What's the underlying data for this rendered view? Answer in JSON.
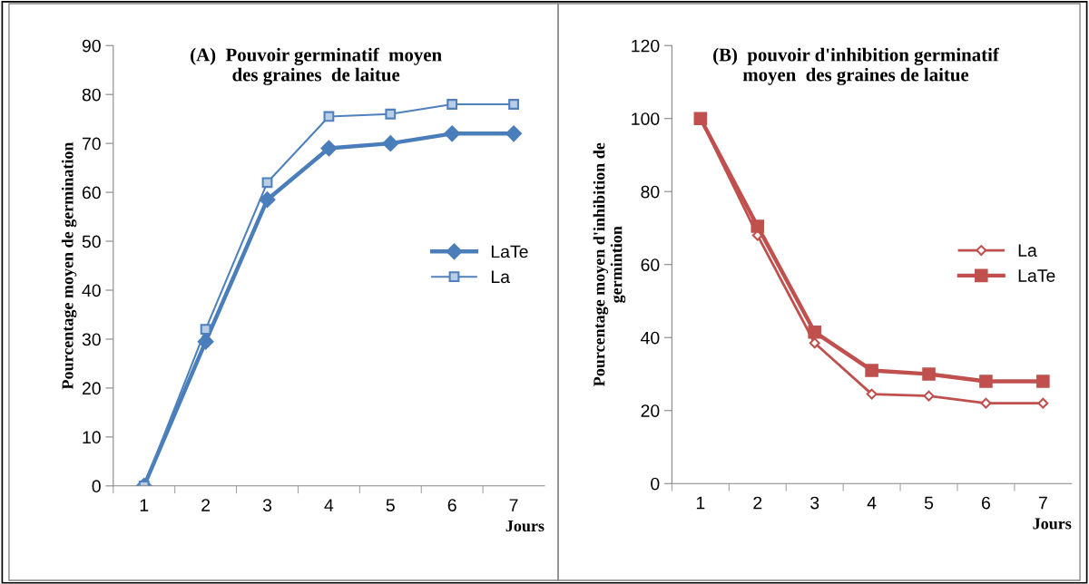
{
  "chart_data": [
    {
      "type": "line",
      "title": "(A)  Pouvoir germinatif  moyen\ndes graines  de laitue",
      "xlabel": "Jours",
      "ylabel": "Pourcentage moyen de germination",
      "categories": [
        "1",
        "2",
        "3",
        "4",
        "5",
        "6",
        "7"
      ],
      "series": [
        {
          "name": "LaTe",
          "color": "#4a7ebb",
          "marker": "diamond",
          "values": [
            0,
            29.5,
            58.5,
            69,
            70,
            72,
            72
          ]
        },
        {
          "name": "La",
          "color": "#4f81bd",
          "marker": "square",
          "values": [
            0,
            32,
            62,
            75.5,
            76,
            78,
            78
          ]
        }
      ],
      "ylim": [
        0,
        90
      ],
      "yticks": [
        0,
        10,
        20,
        30,
        40,
        50,
        60,
        70,
        80,
        90
      ],
      "grid": false,
      "legend": "right"
    },
    {
      "type": "line",
      "title": "(B)  pouvoir d'inhibition germinatif\nmoyen  des graines de laitue",
      "xlabel": "Jours",
      "ylabel": "Pourcentage moyen d'inhibition de\ngermintion",
      "categories": [
        "1",
        "2",
        "3",
        "4",
        "5",
        "6",
        "7"
      ],
      "series": [
        {
          "name": "La",
          "color": "#c0504d",
          "marker": "diamond",
          "values": [
            100,
            68,
            38.5,
            24.5,
            24,
            22,
            22
          ]
        },
        {
          "name": "LaTe",
          "color": "#c0504d",
          "marker": "square",
          "values": [
            100,
            70.5,
            41.5,
            31,
            30,
            28,
            28
          ]
        }
      ],
      "ylim": [
        0,
        120
      ],
      "yticks": [
        0,
        20,
        40,
        60,
        80,
        100,
        120
      ],
      "grid": false,
      "legend": "right"
    }
  ]
}
